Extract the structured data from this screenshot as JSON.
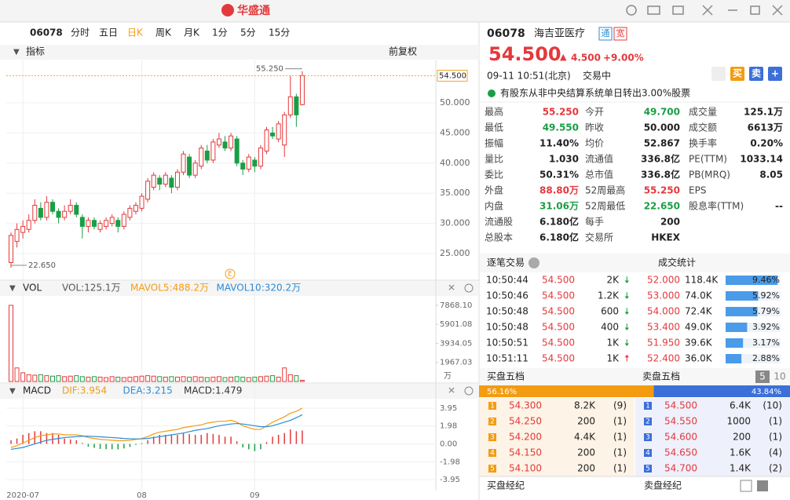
{
  "app": {
    "title": "华盛通"
  },
  "toolbar": {
    "code": "06078",
    "tabs": [
      "分时",
      "五日",
      "日K",
      "周K",
      "月K",
      "1分",
      "5分",
      "15分"
    ],
    "active_tab": 2
  },
  "indicator_bar": {
    "label": "指标",
    "adjust": "前复权"
  },
  "chart_data": [
    {
      "type": "candlestick",
      "up_color": "#e4393c",
      "down_color": "#1a9e45",
      "categories": [
        null,
        null,
        "2020-07",
        null,
        null,
        null,
        null,
        null,
        null,
        null,
        null,
        null,
        null,
        null,
        null,
        null,
        null,
        null,
        null,
        null,
        null,
        null,
        "08",
        null,
        null,
        null,
        null,
        null,
        null,
        null,
        null,
        null,
        null,
        null,
        null,
        null,
        null,
        null,
        null,
        null,
        null,
        "09",
        null,
        null,
        null,
        null,
        null,
        null,
        null,
        null
      ],
      "open": [
        23.5,
        27.0,
        28.5,
        29.0,
        30.5,
        32.5,
        31.0,
        33.5,
        32.0,
        31.0,
        32.0,
        33.0,
        31.0,
        29.5,
        30.5,
        29.0,
        29.5,
        30.0,
        30.5,
        29.5,
        31.0,
        32.0,
        32.5,
        34.0,
        36.0,
        37.5,
        36.5,
        37.5,
        36.0,
        38.5,
        41.0,
        38.0,
        39.5,
        42.0,
        40.5,
        43.0,
        43.5,
        42.5,
        44.0,
        40.0,
        39.0,
        40.5,
        39.5,
        42.0,
        45.0,
        44.0,
        43.0,
        48.0,
        51.0,
        49.7
      ],
      "high": [
        28.5,
        30.0,
        30.5,
        31.5,
        34.0,
        33.5,
        34.5,
        34.0,
        32.5,
        33.0,
        34.0,
        33.5,
        31.5,
        31.0,
        31.0,
        30.5,
        31.0,
        31.5,
        31.0,
        32.0,
        33.0,
        33.5,
        35.0,
        37.5,
        38.5,
        38.0,
        38.5,
        38.0,
        39.0,
        42.0,
        41.5,
        40.5,
        43.0,
        43.0,
        44.0,
        45.0,
        44.5,
        45.0,
        44.5,
        40.5,
        41.5,
        41.0,
        43.0,
        46.0,
        46.0,
        47.0,
        48.5,
        54.5,
        51.5,
        55.25
      ],
      "low": [
        22.65,
        26.0,
        27.5,
        28.5,
        30.0,
        30.5,
        30.5,
        31.5,
        30.0,
        30.5,
        31.5,
        31.0,
        27.5,
        28.5,
        29.0,
        28.5,
        29.0,
        29.5,
        28.5,
        29.0,
        30.5,
        31.5,
        32.0,
        33.5,
        35.5,
        35.5,
        36.0,
        35.0,
        35.5,
        38.0,
        37.5,
        37.5,
        39.0,
        40.0,
        40.0,
        42.5,
        42.0,
        42.0,
        39.5,
        38.0,
        38.5,
        38.5,
        39.0,
        41.5,
        44.0,
        43.5,
        41.0,
        47.5,
        46.0,
        49.55
      ],
      "close": [
        28.0,
        29.0,
        29.5,
        30.5,
        33.0,
        31.0,
        33.5,
        32.0,
        31.0,
        32.0,
        33.0,
        31.5,
        29.5,
        30.5,
        29.5,
        30.0,
        30.5,
        31.0,
        29.5,
        31.5,
        32.5,
        33.0,
        34.5,
        37.0,
        38.0,
        36.5,
        38.0,
        36.0,
        38.5,
        41.5,
        38.0,
        40.0,
        42.5,
        40.5,
        43.5,
        44.0,
        42.5,
        44.5,
        40.0,
        39.0,
        41.0,
        39.5,
        42.5,
        45.5,
        44.5,
        46.5,
        48.0,
        51.0,
        48.0,
        54.5
      ],
      "ylim": [
        20.57,
        57.03
      ],
      "yticks": [
        {
          "value": 25,
          "label": "25.000"
        },
        {
          "value": 30,
          "label": "30.000"
        },
        {
          "value": 35,
          "label": "35.000"
        },
        {
          "value": 40,
          "label": "40.000"
        },
        {
          "value": 45,
          "label": "45.000"
        },
        {
          "value": 50,
          "label": "50.000"
        }
      ],
      "last_price": {
        "value": 54.5,
        "label": "54.500"
      },
      "annotations": [
        {
          "value": 55.25,
          "label": "55.250"
        },
        {
          "value": 22.65,
          "label": "22.650"
        }
      ],
      "event_marker": "E"
    },
    {
      "type": "bar",
      "title": "VOL",
      "legend": [
        "VOL:125.1万",
        "MAVOL5:488.2万",
        "MAVOL10:320.2万"
      ],
      "legend_colors": [
        "#555555",
        "#f39c12",
        "#2b8bd6"
      ],
      "values": [
        7868.1,
        1400,
        900,
        700,
        650,
        700,
        600,
        550,
        600,
        500,
        550,
        600,
        500,
        450,
        500,
        450,
        400,
        500,
        450,
        400,
        450,
        500,
        550,
        600,
        550,
        500,
        450,
        500,
        450,
        500,
        450,
        500,
        450,
        400,
        450,
        500,
        400,
        450,
        500,
        450,
        400,
        450,
        500,
        550,
        600,
        450,
        1400,
        700,
        600,
        125.1
      ],
      "ylim": [
        0,
        7868.1
      ],
      "yticks": [
        1967.03,
        3934.05,
        5901.08,
        {
          "value": 7868.1,
          "label": "7868.10"
        }
      ],
      "unit": "万"
    },
    {
      "type": "macd",
      "title": "MACD",
      "legend": [
        "DIF:3.954",
        "DEA:3.215",
        "MACD:1.479"
      ],
      "series": [
        {
          "name": "DIF",
          "color": "#f39c12",
          "values": [
            -0.4,
            -0.2,
            0.1,
            0.4,
            0.7,
            0.9,
            1.0,
            1.1,
            1.1,
            1.0,
            1.0,
            1.0,
            0.9,
            0.7,
            0.6,
            0.5,
            0.45,
            0.4,
            0.35,
            0.35,
            0.4,
            0.5,
            0.6,
            0.8,
            1.1,
            1.3,
            1.4,
            1.5,
            1.6,
            1.8,
            1.9,
            2.0,
            2.1,
            2.3,
            2.4,
            2.5,
            2.5,
            2.6,
            2.4,
            2.0,
            1.8,
            1.6,
            1.6,
            2.0,
            2.4,
            2.7,
            3.0,
            3.4,
            3.6,
            3.954
          ]
        },
        {
          "name": "DEA",
          "color": "#2b8bd6",
          "values": [
            -0.6,
            -0.5,
            -0.4,
            -0.2,
            0.0,
            0.2,
            0.4,
            0.5,
            0.6,
            0.7,
            0.75,
            0.8,
            0.85,
            0.85,
            0.82,
            0.78,
            0.74,
            0.7,
            0.65,
            0.6,
            0.57,
            0.55,
            0.56,
            0.6,
            0.7,
            0.8,
            0.9,
            1.0,
            1.1,
            1.2,
            1.35,
            1.5,
            1.6,
            1.7,
            1.85,
            2.0,
            2.1,
            2.2,
            2.25,
            2.2,
            2.1,
            2.0,
            1.9,
            1.9,
            2.0,
            2.2,
            2.4,
            2.6,
            2.9,
            3.215
          ]
        },
        {
          "name": "MACD",
          "values": [
            0.4,
            0.6,
            1.0,
            1.2,
            1.4,
            1.4,
            1.2,
            1.2,
            1.0,
            0.6,
            0.5,
            0.4,
            0.1,
            -0.3,
            -0.44,
            -0.56,
            -0.58,
            -0.6,
            -0.6,
            -0.5,
            -0.34,
            -0.1,
            0.08,
            0.4,
            0.8,
            1.0,
            1.0,
            1.0,
            1.0,
            1.2,
            1.1,
            1.0,
            1.0,
            1.2,
            1.1,
            1.0,
            0.8,
            0.8,
            0.3,
            -0.4,
            -0.6,
            -0.8,
            -0.6,
            0.2,
            0.8,
            1.0,
            1.2,
            1.6,
            1.4,
            1.479
          ]
        }
      ],
      "ylim": [
        -5.16,
        4.99
      ],
      "yticks": [
        -3.95,
        -1.98,
        {
          "value": 0,
          "label": "0.00"
        },
        1.98,
        3.95
      ]
    }
  ],
  "quote": {
    "code": "06078",
    "name": "海吉亚医疗",
    "tags": [
      "通",
      "宽"
    ],
    "price": "54.500",
    "change": "4.500",
    "change_pct": "+9.00%",
    "time": "09-11  10:51(北京)",
    "status": "交易中",
    "buttons": [
      "买",
      "卖",
      "+"
    ],
    "notice": "有股东从非中央结算系统单日转出3.00%股票"
  },
  "stats": [
    [
      {
        "label": "最高",
        "value": "55.250",
        "tone": "up"
      },
      {
        "label": "今开",
        "value": "49.700",
        "tone": "down"
      },
      {
        "label": "成交量",
        "value": "125.1万"
      }
    ],
    [
      {
        "label": "最低",
        "value": "49.550",
        "tone": "down"
      },
      {
        "label": "昨收",
        "value": "50.000"
      },
      {
        "label": "成交额",
        "value": "6613万"
      }
    ],
    [
      {
        "label": "振幅",
        "value": "11.40%"
      },
      {
        "label": "均价",
        "value": "52.867"
      },
      {
        "label": "换手率",
        "value": "0.20%"
      }
    ],
    [
      {
        "label": "量比",
        "value": "1.030"
      },
      {
        "label": "流通值",
        "value": "336.8亿"
      },
      {
        "label": "PE(TTM)",
        "value": "1033.14"
      }
    ],
    [
      {
        "label": "委比",
        "value": "50.31%"
      },
      {
        "label": "总市值",
        "value": "336.8亿"
      },
      {
        "label": "PB(MRQ)",
        "value": "8.05"
      }
    ],
    [
      {
        "label": "外盘",
        "value": "88.80万",
        "tone": "up"
      },
      {
        "label": "52周最高",
        "value": "55.250",
        "tone": "up"
      },
      {
        "label": "EPS"
      }
    ],
    [
      {
        "label": "内盘",
        "value": "31.06万",
        "tone": "down"
      },
      {
        "label": "52周最低",
        "value": "22.650",
        "tone": "down"
      },
      {
        "label": "股息率(TTM)",
        "value": "--"
      }
    ],
    [
      {
        "label": "流通股",
        "value": "6.180亿"
      },
      {
        "label": "每手",
        "value": "200"
      }
    ],
    [
      {
        "label": "总股本",
        "value": "6.180亿"
      },
      {
        "label": "交易所",
        "value": "HKEX"
      }
    ]
  ],
  "trades": {
    "title": "逐笔交易",
    "rows": [
      {
        "time": "10:50:44",
        "price": "54.500",
        "volume": "2K",
        "dir": "down"
      },
      {
        "time": "10:50:46",
        "price": "54.500",
        "volume": "1.2K",
        "dir": "down"
      },
      {
        "time": "10:50:48",
        "price": "54.500",
        "volume": "600",
        "dir": "down"
      },
      {
        "time": "10:50:48",
        "price": "54.500",
        "volume": "400",
        "dir": "down"
      },
      {
        "time": "10:50:51",
        "price": "54.500",
        "volume": "1K",
        "dir": "down"
      },
      {
        "time": "10:51:11",
        "price": "54.500",
        "volume": "1K",
        "dir": "up"
      }
    ]
  },
  "volume_stats": {
    "title": "成交统计",
    "rows": [
      {
        "price": "52.000",
        "volume": "118.4K",
        "share": "9.46%"
      },
      {
        "price": "53.000",
        "volume": "74.0K",
        "share": "5.92%"
      },
      {
        "price": "54.000",
        "volume": "72.4K",
        "share": "5.79%"
      },
      {
        "price": "53.400",
        "volume": "49.0K",
        "share": "3.92%"
      },
      {
        "price": "51.950",
        "volume": "39.6K",
        "share": "3.17%"
      },
      {
        "price": "52.400",
        "volume": "36.0K",
        "share": "2.88%"
      }
    ]
  },
  "order_book": {
    "bid_title": "买盘五档",
    "ask_title": "卖盘五档",
    "depth_options": [
      "5",
      "10"
    ],
    "bid_ratio": "56.16%",
    "ask_ratio": "43.84%",
    "bids": [
      {
        "level": 1,
        "price": "54.300",
        "volume": "8.2K",
        "count": "(9)"
      },
      {
        "level": 2,
        "price": "54.250",
        "volume": "200",
        "count": "(1)"
      },
      {
        "level": 3,
        "price": "54.200",
        "volume": "4.4K",
        "count": "(1)"
      },
      {
        "level": 4,
        "price": "54.150",
        "volume": "200",
        "count": "(1)"
      },
      {
        "level": 5,
        "price": "54.100",
        "volume": "200",
        "count": "(1)"
      }
    ],
    "asks": [
      {
        "level": 1,
        "price": "54.500",
        "volume": "6.4K",
        "count": "(10)"
      },
      {
        "level": 2,
        "price": "54.550",
        "volume": "1000",
        "count": "(1)"
      },
      {
        "level": 3,
        "price": "54.600",
        "volume": "200",
        "count": "(1)"
      },
      {
        "level": 4,
        "price": "54.650",
        "volume": "1.6K",
        "count": "(4)"
      },
      {
        "level": 5,
        "price": "54.700",
        "volume": "1.4K",
        "count": "(2)"
      }
    ]
  },
  "brokers": {
    "bid_title": "买盘经纪",
    "ask_title": "卖盘经纪"
  }
}
